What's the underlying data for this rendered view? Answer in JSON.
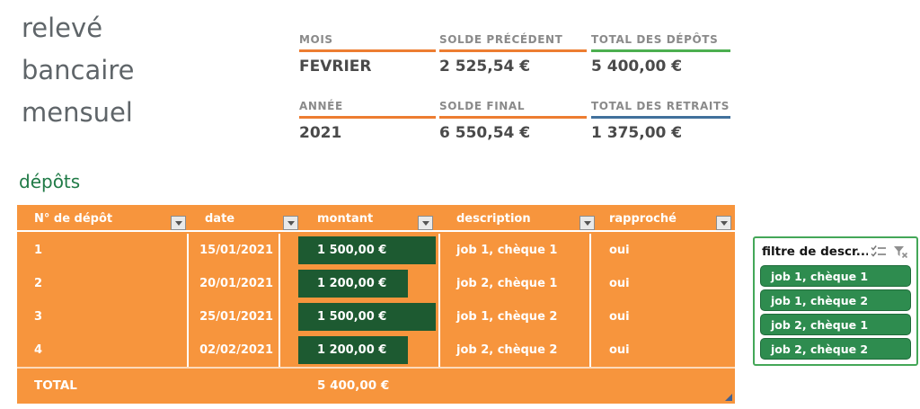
{
  "title_lines": [
    "relevé",
    "bancaire",
    "mensuel"
  ],
  "summary": {
    "cells": [
      {
        "label": "MOIS",
        "value": "FEVRIER",
        "accent": "orange"
      },
      {
        "label": "SOLDE PRÉCÉDENT",
        "value": "2 525,54 €",
        "accent": "orange"
      },
      {
        "label": "TOTAL DES DÉPÔTS",
        "value": "5 400,00 €",
        "accent": "green"
      },
      {
        "label": "ANNÉE",
        "value": "2021",
        "accent": "orange"
      },
      {
        "label": "SOLDE FINAL",
        "value": "6 550,54 €",
        "accent": "orange"
      },
      {
        "label": "TOTAL DES RETRAITS",
        "value": "1 375,00 €",
        "accent": "blue"
      }
    ]
  },
  "deposits": {
    "section_label": "dépôts",
    "columns": [
      "N° de dépôt",
      "date",
      "montant",
      "description",
      "rapproché"
    ],
    "rows": [
      {
        "number": "1",
        "date": "15/01/2021",
        "amount": "1 500,00 €",
        "bar_pct": 100,
        "description": "job 1, chèque 1",
        "reconciled": "oui"
      },
      {
        "number": "2",
        "date": "20/01/2021",
        "amount": "1 200,00 €",
        "bar_pct": 80,
        "description": "job 2, chèque 1",
        "reconciled": "oui"
      },
      {
        "number": "3",
        "date": "25/01/2021",
        "amount": "1 500,00 €",
        "bar_pct": 100,
        "description": "job 1, chèque 2",
        "reconciled": "oui"
      },
      {
        "number": "4",
        "date": "02/02/2021",
        "amount": "1 200,00 €",
        "bar_pct": 80,
        "description": "job 2, chèque 2",
        "reconciled": "oui"
      }
    ],
    "total_label": "TOTAL",
    "total_amount": "5 400,00 €"
  },
  "slicer": {
    "title": "filtre de descr...",
    "items": [
      "job 1, chèque 1",
      "job 1, chèque 2",
      "job 2, chèque 1",
      "job 2, chèque 2"
    ]
  },
  "colors": {
    "table_orange": "#F7953D",
    "bar_green": "#1D5A31",
    "accent_orange": "#ED7D31",
    "accent_green": "#4CAF50",
    "accent_blue": "#41719C",
    "slicer_green": "#2E8C4F",
    "slicer_border": "#44A758",
    "section_green": "#1F7A46"
  }
}
